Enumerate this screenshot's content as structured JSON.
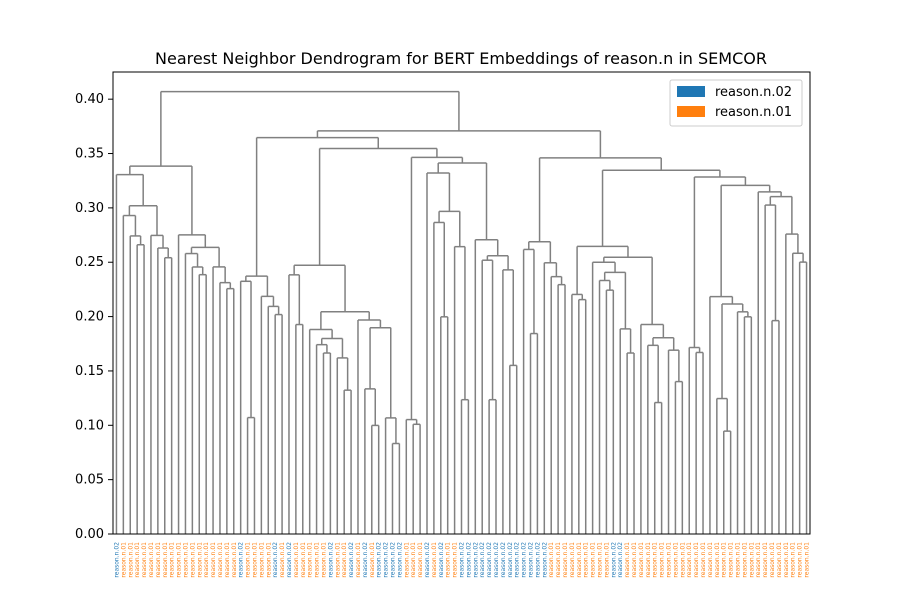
{
  "chart_data": {
    "type": "dendrogram",
    "title": "Nearest Neighbor Dendrogram for BERT Embeddings of reason.n in SEMCOR",
    "xlabel": "",
    "ylabel": "",
    "ylim": [
      0,
      0.425
    ],
    "yticks": [
      0.0,
      0.05,
      0.1,
      0.15,
      0.2,
      0.25,
      0.3,
      0.35,
      0.4
    ],
    "ytick_labels": [
      "0.00",
      "0.05",
      "0.10",
      "0.15",
      "0.20",
      "0.25",
      "0.30",
      "0.35",
      "0.40"
    ],
    "grid": false,
    "legend_position": "top-right",
    "legend": [
      {
        "label": "reason.n.02",
        "color": "#1f77b4"
      },
      {
        "label": "reason.n.01",
        "color": "#ff7f0e"
      }
    ],
    "link_color": "#808080",
    "leaf_label": "reason.n",
    "leaf_senses": [
      "02",
      "01",
      "01",
      "01",
      "01",
      "01",
      "01",
      "01",
      "01",
      "01",
      "01",
      "01",
      "01",
      "01",
      "01",
      "01",
      "01",
      "01",
      "02",
      "01",
      "01",
      "01",
      "01",
      "02",
      "01",
      "02",
      "01",
      "01",
      "01",
      "01",
      "01",
      "02",
      "01",
      "01",
      "02",
      "01",
      "02",
      "01",
      "02",
      "02",
      "02",
      "02",
      "01",
      "01",
      "01",
      "02",
      "01",
      "02",
      "01",
      "01",
      "02",
      "02",
      "02",
      "02",
      "02",
      "02",
      "02",
      "02",
      "02",
      "02",
      "02",
      "02",
      "02",
      "01",
      "01",
      "01",
      "01",
      "01",
      "01",
      "01",
      "01",
      "01",
      "02",
      "02",
      "01",
      "01",
      "01",
      "01",
      "01",
      "01",
      "01",
      "01",
      "01",
      "01",
      "01",
      "01",
      "01",
      "01",
      "01",
      "01",
      "01",
      "01",
      "01",
      "01",
      "01",
      "01",
      "01",
      "01",
      "01",
      "01",
      "01"
    ],
    "merges": [
      [
        0.407,
        0.362,
        0.34,
        0.334,
        0.322,
        0.31,
        0.301,
        0.297,
        0.295,
        0.29,
        0.285,
        0.283,
        0.279,
        0.277,
        0.273,
        0.266,
        0.264,
        0.262,
        0.26,
        0.252,
        0.25,
        0.248,
        0.246,
        0.235,
        0.233,
        0.231,
        0.229,
        0.226,
        0.222,
        0.22,
        0.216,
        0.212,
        0.21,
        0.207,
        0.205,
        0.195,
        0.194,
        0.192,
        0.19,
        0.188,
        0.182,
        0.176,
        0.17,
        0.16,
        0.15,
        0.14,
        0.13,
        0.12,
        0.115,
        0.11
      ],
      [
        0.228,
        0.194,
        0.157,
        0.256,
        0.224,
        0.24,
        0.228,
        0.203,
        0.176,
        0.141,
        0.102,
        0.223,
        0.177,
        0.141,
        0.22,
        0.198,
        0.177,
        0.175,
        0.184,
        0.155,
        0.138,
        0.119,
        0.139,
        0.118,
        0.115,
        0.106,
        0.192,
        0.188,
        0.205,
        0.24,
        0.256,
        0.238,
        0.223,
        0.19,
        0.174,
        0.158,
        0.142,
        0.138,
        0.114,
        0.19,
        0.16,
        0.15,
        0.151,
        0.21,
        0.18,
        0.14,
        0.114,
        0.108,
        0.1,
        0.095
      ]
    ]
  }
}
